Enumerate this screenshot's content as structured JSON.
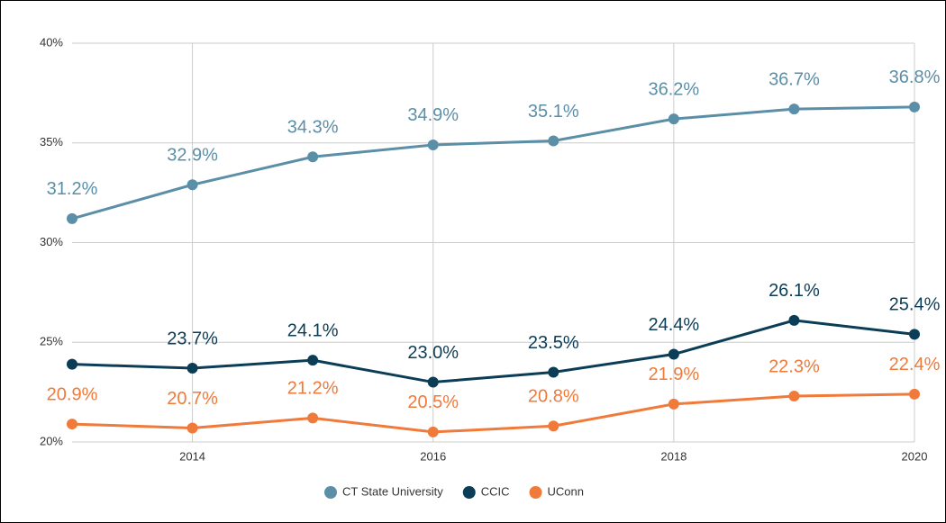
{
  "chart_data": {
    "type": "line",
    "x": [
      2013,
      2014,
      2015,
      2016,
      2017,
      2018,
      2019,
      2020
    ],
    "xlim": [
      2013,
      2020
    ],
    "xticks": [
      2014,
      2016,
      2018,
      2020
    ],
    "ylim": [
      20,
      40
    ],
    "yticks": [
      {
        "value": 20,
        "label": "20%"
      },
      {
        "value": 25,
        "label": "25%"
      },
      {
        "value": 30,
        "label": "30%"
      },
      {
        "value": 35,
        "label": "35%"
      },
      {
        "value": 40,
        "label": "40%"
      }
    ],
    "grid": true,
    "legend": "bottom",
    "series": [
      {
        "name": "CT State University",
        "color": "#5b8fa8",
        "values": [
          31.2,
          32.9,
          34.3,
          34.9,
          35.1,
          36.2,
          36.7,
          36.8
        ],
        "value_labels": [
          "31.2%",
          "32.9%",
          "34.3%",
          "34.9%",
          "35.1%",
          "36.2%",
          "36.7%",
          "36.8%"
        ]
      },
      {
        "name": "CCIC",
        "color": "#0b3d57",
        "values": [
          23.9,
          23.7,
          24.1,
          23.0,
          23.5,
          24.4,
          26.1,
          25.4
        ],
        "value_labels": [
          null,
          "23.7%",
          "24.1%",
          "23.0%",
          "23.5%",
          "24.4%",
          "26.1%",
          "25.4%"
        ]
      },
      {
        "name": "UConn",
        "color": "#f07a3a",
        "values": [
          20.9,
          20.7,
          21.2,
          20.5,
          20.8,
          21.9,
          22.3,
          22.4
        ],
        "value_labels": [
          "20.9%",
          "20.7%",
          "21.2%",
          "20.5%",
          "20.8%",
          "21.9%",
          "22.3%",
          "22.4%"
        ]
      }
    ]
  }
}
